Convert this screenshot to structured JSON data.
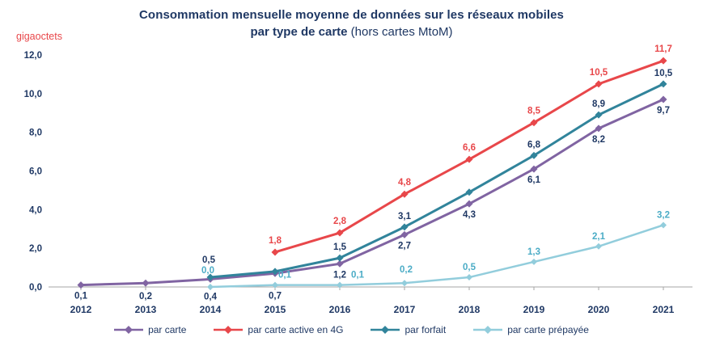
{
  "title": {
    "line1": "Consommation mensuelle moyenne de données sur  les réseaux mobiles",
    "line2_bold": "par type de carte",
    "line2_normal": " (hors cartes MtoM)"
  },
  "y_axis": {
    "unit_label": "gigaoctets",
    "ticks": [
      "0,0",
      "2,0",
      "4,0",
      "6,0",
      "8,0",
      "10,0",
      "12,0"
    ],
    "tick_values": [
      0,
      2,
      4,
      6,
      8,
      10,
      12
    ]
  },
  "chart_data": {
    "type": "line",
    "title": "Consommation mensuelle moyenne de données sur les réseaux mobiles par type de carte (hors cartes MtoM)",
    "ylabel": "gigaoctets",
    "ylim": [
      0,
      12
    ],
    "grid": false,
    "legend_position": "bottom",
    "categories": [
      "2012",
      "2013",
      "2014",
      "2015",
      "2016",
      "2017",
      "2018",
      "2019",
      "2020",
      "2021"
    ],
    "series": [
      {
        "id": "par-carte",
        "name": "par carte",
        "color": "#8064a2",
        "line_width": 3,
        "marker_size": 4.5,
        "label_color": "#1f3864",
        "label_dy": 17,
        "label_offsets": {
          "1": [
            0,
            20
          ],
          "2": [
            0,
            25
          ],
          "3": [
            0,
            31
          ]
        },
        "values": [
          0.1,
          0.2,
          0.4,
          0.7,
          1.2,
          2.7,
          4.3,
          6.1,
          8.2,
          9.7
        ],
        "labels": [
          "0,1",
          "0,2",
          "0,4",
          "0,7",
          "1,2",
          "2,7",
          "4,3",
          "6,1",
          "8,2",
          "9,7"
        ]
      },
      {
        "id": "carte-active-4g",
        "name": "par carte active en 4G",
        "color": "#e8474a",
        "line_width": 3,
        "marker_size": 4.5,
        "label_color": "#e8474a",
        "label_dy": -11,
        "label_offsets": {},
        "values": [
          null,
          null,
          null,
          1.8,
          2.8,
          4.8,
          6.6,
          8.5,
          10.5,
          11.7
        ],
        "labels": [
          null,
          null,
          null,
          "1,8",
          "2,8",
          "4,8",
          "6,6",
          "8,5",
          "10,5",
          "11,7"
        ]
      },
      {
        "id": "forfait",
        "name": "par forfait",
        "color": "#31849b",
        "line_width": 3,
        "marker_size": 4.5,
        "label_color": "#1f3864",
        "label_dy": -10,
        "label_offsets": {
          "2": [
            -2,
            -18
          ]
        },
        "values": [
          null,
          null,
          0.5,
          0.8,
          1.5,
          3.1,
          4.9,
          6.8,
          8.9,
          10.5
        ],
        "labels": [
          null,
          null,
          "0,5",
          null,
          "1,5",
          "3,1",
          null,
          "6,8",
          "8,9",
          "10,5"
        ]
      },
      {
        "id": "carte-prepayee",
        "name": "par carte prépayée",
        "color": "#92cddc",
        "line_width": 2.5,
        "marker_size": 4,
        "label_color": "#4bacc6",
        "label_dy": -9,
        "label_offsets": {
          "2": [
            -3,
            -17
          ],
          "3": [
            12,
            -9
          ],
          "4": [
            22,
            -9
          ],
          "5": [
            2,
            -13
          ]
        },
        "values": [
          null,
          null,
          0.0,
          0.1,
          0.1,
          0.2,
          0.5,
          1.3,
          2.1,
          3.2
        ],
        "labels": [
          null,
          null,
          "0,0",
          "0,1",
          "0,1",
          "0,2",
          "0,5",
          "1,3",
          "2,1",
          "3,2"
        ]
      }
    ]
  }
}
